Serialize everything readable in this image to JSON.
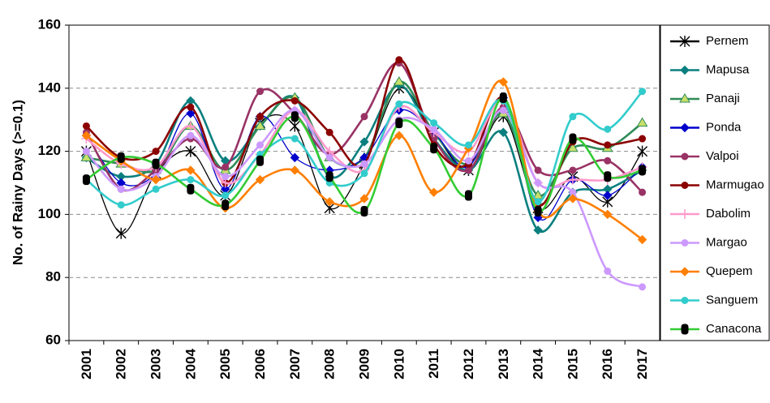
{
  "chart_data": {
    "type": "line",
    "title": "",
    "xlabel": "",
    "ylabel": "No. of Rainy Days (>=0.1)",
    "ylim": [
      60,
      160
    ],
    "yticks": [
      60,
      80,
      100,
      120,
      140,
      160
    ],
    "grid": "horizontal dashed",
    "legend_position": "right",
    "categories": [
      "2001",
      "2002",
      "2003",
      "2004",
      "2005",
      "2006",
      "2007",
      "2008",
      "2009",
      "2010",
      "2011",
      "2012",
      "2013",
      "2014",
      "2015",
      "2016",
      "2017"
    ],
    "series": [
      {
        "name": "Pernem",
        "color": "#000000",
        "marker": "asterisk",
        "values": [
          120,
          94,
          113,
          120,
          106,
          129,
          128,
          102,
          116,
          140,
          126,
          114,
          131,
          102,
          112,
          104,
          120
        ]
      },
      {
        "name": "Mapusa",
        "color": "#0b7f7f",
        "marker": "diamond",
        "values": [
          118,
          112,
          116,
          136,
          117,
          128,
          137,
          112,
          123,
          141,
          124,
          114,
          126,
          95,
          107,
          108,
          114
        ]
      },
      {
        "name": "Panaji",
        "color": "#2e8b57",
        "marker": "triangle",
        "values": [
          118,
          116,
          114,
          128,
          114,
          128,
          137,
          118,
          118,
          142,
          126,
          116,
          132,
          106,
          121,
          121,
          129
        ]
      },
      {
        "name": "Ponda",
        "color": "#0000cc",
        "marker": "diamond",
        "values": [
          125,
          110,
          113,
          132,
          108,
          131,
          118,
          114,
          118,
          133,
          126,
          115,
          137,
          99,
          111,
          106,
          115
        ]
      },
      {
        "name": "Valpoi",
        "color": "#993366",
        "marker": "circle",
        "values": [
          126,
          108,
          114,
          124,
          115,
          139,
          132,
          119,
          131,
          148,
          124,
          114,
          134,
          114,
          114,
          117,
          107
        ]
      },
      {
        "name": "Marmugao",
        "color": "#8b0000",
        "marker": "circle",
        "values": [
          128,
          118,
          120,
          134,
          110,
          131,
          136,
          126,
          116,
          149,
          122,
          116,
          137,
          103,
          123,
          122,
          124
        ]
      },
      {
        "name": "Dabolim",
        "color": "#ff99cc",
        "marker": "plus",
        "values": [
          124,
          116,
          115,
          128,
          110,
          119,
          133,
          120,
          114,
          134,
          126,
          120,
          136,
          110,
          111,
          111,
          115
        ]
      },
      {
        "name": "Margao",
        "color": "#cc99ff",
        "marker": "circle",
        "values": [
          120,
          108,
          112,
          125,
          112,
          122,
          133,
          118,
          116,
          130,
          127,
          117,
          133,
          110,
          107,
          82,
          77
        ]
      },
      {
        "name": "Quepem",
        "color": "#ff7f00",
        "marker": "diamond",
        "values": [
          125,
          117,
          111,
          114,
          102,
          111,
          114,
          104,
          105,
          125,
          107,
          121,
          142,
          101,
          105,
          100,
          92
        ]
      },
      {
        "name": "Sanguem",
        "color": "#33cccc",
        "marker": "circle",
        "values": [
          111,
          103,
          108,
          111,
          106,
          119,
          124,
          110,
          113,
          135,
          129,
          122,
          136,
          104,
          131,
          127,
          139
        ]
      },
      {
        "name": "Canacona",
        "color": "#33cc33",
        "marker": "square",
        "values": [
          111,
          118,
          116,
          108,
          103,
          117,
          131,
          112,
          101,
          129,
          121,
          106,
          137,
          101,
          124,
          112,
          114
        ]
      }
    ]
  }
}
